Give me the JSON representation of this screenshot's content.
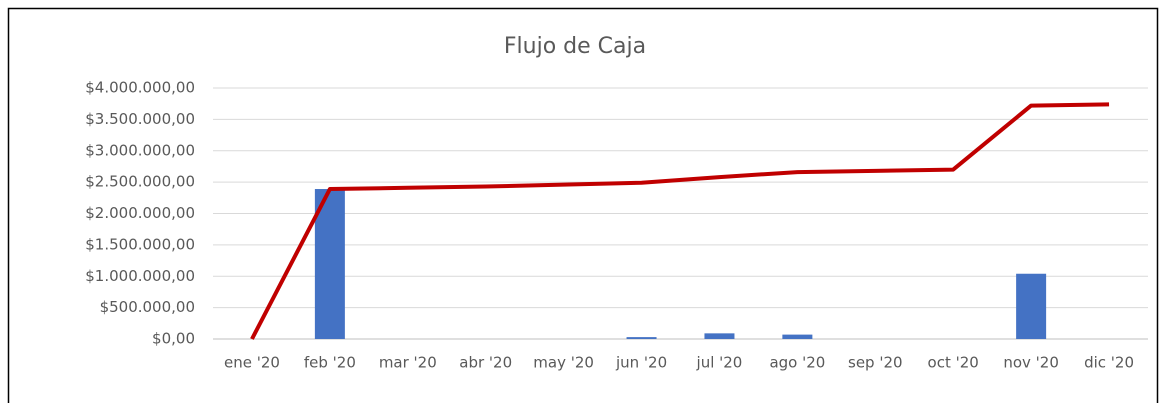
{
  "chart_data": {
    "type": "bar-line",
    "title": "Flujo de Caja",
    "categories": [
      "ene '20",
      "feb '20",
      "mar '20",
      "abr '20",
      "may '20",
      "jun '20",
      "jul '20",
      "ago '20",
      "sep '20",
      "oct '20",
      "nov '20",
      "dic '20"
    ],
    "series": [
      {
        "type": "bar",
        "color": "#4472c4",
        "values": [
          0,
          2390000,
          0,
          0,
          0,
          30000,
          90000,
          70000,
          0,
          0,
          1040000,
          0
        ]
      },
      {
        "type": "line",
        "color": "#c00000",
        "values": [
          0,
          2390000,
          2410000,
          2430000,
          2460000,
          2490000,
          2580000,
          2660000,
          2680000,
          2700000,
          3720000,
          3740000
        ]
      }
    ],
    "ylim": [
      0,
      4000000
    ],
    "yticks": [
      {
        "value": 0,
        "label": "$0,00"
      },
      {
        "value": 500000,
        "label": "$500.000,00"
      },
      {
        "value": 1000000,
        "label": "$1.000.000,00"
      },
      {
        "value": 1500000,
        "label": "$1.500.000,00"
      },
      {
        "value": 2000000,
        "label": "$2.000.000,00"
      },
      {
        "value": 2500000,
        "label": "$2.500.000,00"
      },
      {
        "value": 3000000,
        "label": "$3.000.000,00"
      },
      {
        "value": 3500000,
        "label": "$3.500.000,00"
      },
      {
        "value": 4000000,
        "label": "$4.000.000,00"
      }
    ],
    "grid": true
  }
}
